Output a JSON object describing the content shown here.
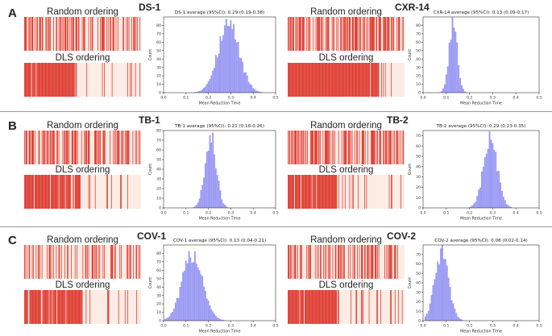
{
  "colors": {
    "stripe": "#dc2f24",
    "strip_bg": "#fdece4",
    "hist": "#9b9bf4",
    "axis": "#333333"
  },
  "labels": {
    "random": "Random ordering",
    "dls": "DLS ordering"
  },
  "row_letters": [
    "A",
    "B",
    "C"
  ],
  "chart_data": [
    {
      "id": "ds1",
      "name": "DS-1",
      "type": "bar",
      "title": "DS-1 average (95%CI): 0.29 (0.19-0.38)",
      "xlabel": "Mean Reduction Time",
      "ylabel": "Count",
      "xlim": [
        0,
        0.5
      ],
      "ylim": [
        0,
        90
      ],
      "xticks": [
        "0.0",
        "0.1",
        "0.2",
        "0.3",
        "0.4",
        "0.5"
      ],
      "yticks": [
        0,
        10,
        20,
        30,
        40,
        50,
        60,
        70,
        80
      ],
      "mean": 0.29,
      "sd": 0.048,
      "peak": 84
    },
    {
      "id": "cxr14",
      "name": "CXR-14",
      "type": "bar",
      "title": "CXR-14 average (95%CI): 0.13 (0.09-0.17)",
      "xlabel": "Mean Reduction Time",
      "ylabel": "Count",
      "xlim": [
        0,
        0.5
      ],
      "ylim": [
        0,
        90
      ],
      "xticks": [
        "0.0",
        "0.1",
        "0.2",
        "0.3",
        "0.4",
        "0.5"
      ],
      "yticks": [
        0,
        10,
        20,
        30,
        40,
        50,
        60,
        70,
        80
      ],
      "mean": 0.13,
      "sd": 0.018,
      "peak": 84
    },
    {
      "id": "tb1",
      "name": "TB-1",
      "type": "bar",
      "title": "TB-1 average (95%CI): 0.21 (0.16-0.26)",
      "xlabel": "Mean Reduction Time",
      "ylabel": "Count",
      "xlim": [
        0,
        0.5
      ],
      "ylim": [
        0,
        80
      ],
      "xticks": [
        "0.0",
        "0.1",
        "0.2",
        "0.3",
        "0.4",
        "0.5"
      ],
      "yticks": [
        0,
        10,
        20,
        30,
        40,
        50,
        60,
        70,
        80
      ],
      "mean": 0.21,
      "sd": 0.025,
      "peak": 76
    },
    {
      "id": "tb2",
      "name": "TB-2",
      "type": "bar",
      "title": "TB-2 average (95%CI): 0.29 (0.23-0.35)",
      "xlabel": "Mean Reduction Time",
      "ylabel": "Count",
      "xlim": [
        0,
        0.5
      ],
      "ylim": [
        0,
        75
      ],
      "xticks": [
        "0.0",
        "0.1",
        "0.2",
        "0.3",
        "0.4",
        "0.5"
      ],
      "yticks": [
        0,
        10,
        20,
        30,
        40,
        50,
        60,
        70
      ],
      "mean": 0.29,
      "sd": 0.03,
      "peak": 68
    },
    {
      "id": "cov1",
      "name": "COV-1",
      "type": "bar",
      "title": "COV-1 average (95%CI): 0.13 (0.04-0.21)",
      "xlabel": "Mean Reduction Time",
      "ylabel": "Count",
      "xlim": [
        0,
        0.5
      ],
      "ylim": [
        0,
        90
      ],
      "xticks": [
        "0.0",
        "0.1",
        "0.2",
        "0.3",
        "0.4",
        "0.5"
      ],
      "yticks": [
        0,
        10,
        20,
        30,
        40,
        50,
        60,
        70,
        80
      ],
      "mean": 0.13,
      "sd": 0.045,
      "peak": 82
    },
    {
      "id": "cov2",
      "name": "COV-2",
      "type": "bar",
      "title": "COV-2 average (95%CI): 0.08 (0.02-0.14)",
      "xlabel": "Mean Reduction Time",
      "ylabel": "Count",
      "xlim": [
        0,
        0.5
      ],
      "ylim": [
        0,
        80
      ],
      "xticks": [
        "0.0",
        "0.1",
        "0.2",
        "0.3",
        "0.4",
        "0.5"
      ],
      "yticks": [
        0,
        10,
        20,
        30,
        40,
        50,
        60,
        70
      ],
      "mean": 0.08,
      "sd": 0.03,
      "peak": 72
    }
  ]
}
